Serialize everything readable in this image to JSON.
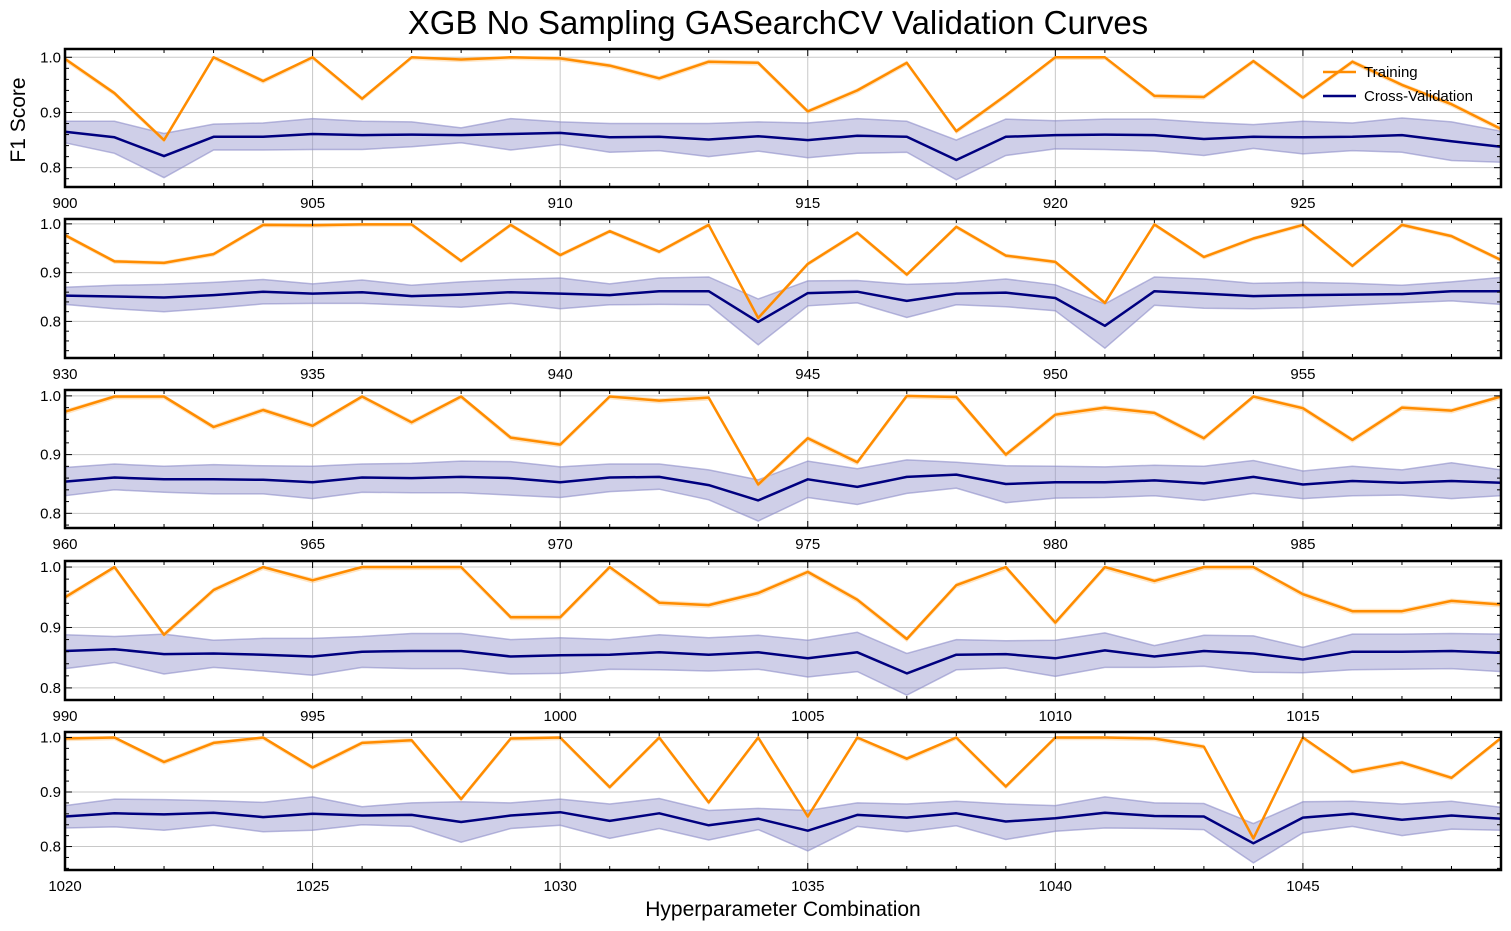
{
  "chart_data": {
    "type": "line",
    "title": "XGB No Sampling GASearchCV Validation Curves",
    "xlabel": "Hyperparameter Combination",
    "ylabel": "F1 Score",
    "legend": {
      "placement": "top-right",
      "entries": [
        "Training",
        "Cross-Validation"
      ]
    },
    "colors": {
      "Training": "#ff8c00",
      "Cross-Validation": "#00007f",
      "cv_band": "#8c8cc8"
    },
    "grid": true,
    "panels": [
      {
        "xlim": [
          900,
          929
        ],
        "ylim": [
          0.765,
          1.015
        ],
        "xticks": [
          900,
          905,
          910,
          915,
          920,
          925
        ],
        "yticks": [
          0.8,
          0.9,
          1.0
        ],
        "x": [
          900,
          901,
          902,
          903,
          904,
          905,
          906,
          907,
          908,
          909,
          910,
          911,
          912,
          913,
          914,
          915,
          916,
          917,
          918,
          919,
          920,
          921,
          922,
          923,
          924,
          925,
          926,
          927,
          928,
          929
        ],
        "series": [
          {
            "name": "Training",
            "values": [
              0.997,
              0.935,
              0.85,
              1.0,
              0.957,
              1.0,
              0.925,
              1.0,
              0.996,
              1.0,
              0.998,
              0.985,
              0.962,
              0.992,
              0.99,
              0.902,
              0.94,
              0.99,
              0.866,
              0.931,
              1.0,
              1.0,
              0.93,
              0.928,
              0.993,
              0.927,
              0.992,
              0.95,
              0.915,
              0.87
            ]
          },
          {
            "name": "Cross-Validation",
            "values": [
              0.865,
              0.855,
              0.821,
              0.856,
              0.856,
              0.861,
              0.859,
              0.86,
              0.859,
              0.861,
              0.863,
              0.855,
              0.856,
              0.851,
              0.857,
              0.85,
              0.858,
              0.856,
              0.814,
              0.856,
              0.859,
              0.86,
              0.859,
              0.852,
              0.856,
              0.855,
              0.856,
              0.859,
              0.848,
              0.838
            ],
            "lower": [
              0.845,
              0.826,
              0.782,
              0.832,
              0.832,
              0.833,
              0.833,
              0.838,
              0.845,
              0.832,
              0.842,
              0.828,
              0.831,
              0.82,
              0.83,
              0.818,
              0.826,
              0.828,
              0.778,
              0.822,
              0.834,
              0.833,
              0.83,
              0.822,
              0.835,
              0.825,
              0.831,
              0.828,
              0.813,
              0.81
            ],
            "upper": [
              0.884,
              0.884,
              0.862,
              0.879,
              0.881,
              0.889,
              0.884,
              0.883,
              0.872,
              0.889,
              0.883,
              0.88,
              0.88,
              0.88,
              0.883,
              0.881,
              0.889,
              0.884,
              0.85,
              0.888,
              0.885,
              0.888,
              0.888,
              0.882,
              0.878,
              0.884,
              0.881,
              0.89,
              0.883,
              0.866
            ]
          }
        ]
      },
      {
        "xlim": [
          930,
          959
        ],
        "ylim": [
          0.725,
          1.01
        ],
        "xticks": [
          930,
          935,
          940,
          945,
          950,
          955
        ],
        "yticks": [
          0.8,
          0.9,
          1.0
        ],
        "x": [
          930,
          931,
          932,
          933,
          934,
          935,
          936,
          937,
          938,
          939,
          940,
          941,
          942,
          943,
          944,
          945,
          946,
          947,
          948,
          949,
          950,
          951,
          952,
          953,
          954,
          955,
          956,
          957,
          958,
          959
        ],
        "series": [
          {
            "name": "Training",
            "values": [
              0.977,
              0.923,
              0.92,
              0.938,
              0.998,
              0.997,
              0.999,
              0.999,
              0.924,
              0.998,
              0.936,
              0.985,
              0.943,
              0.998,
              0.807,
              0.918,
              0.982,
              0.896,
              0.994,
              0.935,
              0.922,
              0.838,
              0.999,
              0.932,
              0.97,
              0.998,
              0.914,
              0.998,
              0.975,
              0.926
            ]
          },
          {
            "name": "Cross-Validation",
            "values": [
              0.853,
              0.851,
              0.849,
              0.854,
              0.861,
              0.857,
              0.86,
              0.852,
              0.855,
              0.86,
              0.857,
              0.854,
              0.862,
              0.862,
              0.799,
              0.858,
              0.861,
              0.842,
              0.857,
              0.859,
              0.848,
              0.791,
              0.862,
              0.857,
              0.852,
              0.854,
              0.855,
              0.856,
              0.862,
              0.862
            ],
            "lower": [
              0.835,
              0.826,
              0.82,
              0.827,
              0.836,
              0.837,
              0.837,
              0.833,
              0.829,
              0.837,
              0.826,
              0.834,
              0.835,
              0.834,
              0.752,
              0.832,
              0.838,
              0.808,
              0.834,
              0.83,
              0.822,
              0.745,
              0.833,
              0.827,
              0.826,
              0.828,
              0.833,
              0.838,
              0.842,
              0.835
            ],
            "upper": [
              0.87,
              0.874,
              0.876,
              0.88,
              0.886,
              0.877,
              0.885,
              0.874,
              0.881,
              0.886,
              0.889,
              0.877,
              0.889,
              0.891,
              0.846,
              0.883,
              0.884,
              0.876,
              0.879,
              0.887,
              0.875,
              0.836,
              0.891,
              0.887,
              0.878,
              0.88,
              0.878,
              0.874,
              0.881,
              0.89
            ]
          }
        ]
      },
      {
        "xlim": [
          960,
          989
        ],
        "ylim": [
          0.775,
          1.01
        ],
        "xticks": [
          960,
          965,
          970,
          975,
          980,
          985
        ],
        "yticks": [
          0.8,
          0.9,
          1.0
        ],
        "x": [
          960,
          961,
          962,
          963,
          964,
          965,
          966,
          967,
          968,
          969,
          970,
          971,
          972,
          973,
          974,
          975,
          976,
          977,
          978,
          979,
          980,
          981,
          982,
          983,
          984,
          985,
          986,
          987,
          988,
          989
        ],
        "series": [
          {
            "name": "Training",
            "values": [
              0.973,
              0.999,
              0.999,
              0.947,
              0.976,
              0.949,
              0.999,
              0.955,
              0.999,
              0.929,
              0.917,
              0.999,
              0.992,
              0.997,
              0.849,
              0.928,
              0.887,
              1.0,
              0.998,
              0.9,
              0.968,
              0.98,
              0.971,
              0.928,
              0.999,
              0.979,
              0.925,
              0.98,
              0.975,
              0.999
            ]
          },
          {
            "name": "Cross-Validation",
            "values": [
              0.854,
              0.861,
              0.858,
              0.858,
              0.857,
              0.853,
              0.861,
              0.86,
              0.862,
              0.86,
              0.853,
              0.861,
              0.862,
              0.848,
              0.822,
              0.858,
              0.845,
              0.862,
              0.866,
              0.85,
              0.853,
              0.853,
              0.856,
              0.851,
              0.862,
              0.849,
              0.855,
              0.852,
              0.855,
              0.852
            ],
            "lower": [
              0.83,
              0.84,
              0.836,
              0.833,
              0.833,
              0.825,
              0.836,
              0.835,
              0.835,
              0.831,
              0.827,
              0.837,
              0.841,
              0.823,
              0.787,
              0.827,
              0.815,
              0.834,
              0.843,
              0.818,
              0.826,
              0.827,
              0.83,
              0.822,
              0.834,
              0.825,
              0.83,
              0.831,
              0.825,
              0.83
            ],
            "upper": [
              0.878,
              0.884,
              0.88,
              0.883,
              0.881,
              0.88,
              0.884,
              0.885,
              0.889,
              0.888,
              0.879,
              0.884,
              0.884,
              0.874,
              0.857,
              0.889,
              0.876,
              0.891,
              0.887,
              0.881,
              0.88,
              0.879,
              0.882,
              0.88,
              0.89,
              0.872,
              0.88,
              0.874,
              0.886,
              0.874
            ]
          }
        ]
      },
      {
        "xlim": [
          990,
          1019
        ],
        "ylim": [
          0.78,
          1.01
        ],
        "xticks": [
          990,
          995,
          1000,
          1005,
          1010,
          1015
        ],
        "yticks": [
          0.8,
          0.9,
          1.0
        ],
        "x": [
          990,
          991,
          992,
          993,
          994,
          995,
          996,
          997,
          998,
          999,
          1000,
          1001,
          1002,
          1003,
          1004,
          1005,
          1006,
          1007,
          1008,
          1009,
          1010,
          1011,
          1012,
          1013,
          1014,
          1015,
          1016,
          1017,
          1018,
          1019
        ],
        "series": [
          {
            "name": "Training",
            "values": [
              0.95,
              1.0,
              0.888,
              0.962,
              1.0,
              0.978,
              1.0,
              1.0,
              1.0,
              0.917,
              0.917,
              1.0,
              0.941,
              0.937,
              0.957,
              0.992,
              0.946,
              0.881,
              0.97,
              1.0,
              0.908,
              1.0,
              0.977,
              1.0,
              1.0,
              0.955,
              0.927,
              0.927,
              0.944,
              0.938
            ]
          },
          {
            "name": "Cross-Validation",
            "values": [
              0.861,
              0.864,
              0.856,
              0.857,
              0.855,
              0.852,
              0.86,
              0.861,
              0.861,
              0.852,
              0.854,
              0.855,
              0.859,
              0.855,
              0.859,
              0.849,
              0.859,
              0.824,
              0.855,
              0.856,
              0.849,
              0.862,
              0.852,
              0.861,
              0.857,
              0.847,
              0.86,
              0.86,
              0.861,
              0.858
            ],
            "lower": [
              0.832,
              0.842,
              0.823,
              0.834,
              0.828,
              0.821,
              0.834,
              0.832,
              0.832,
              0.823,
              0.824,
              0.831,
              0.83,
              0.828,
              0.831,
              0.818,
              0.827,
              0.788,
              0.83,
              0.833,
              0.819,
              0.834,
              0.834,
              0.836,
              0.826,
              0.825,
              0.83,
              0.831,
              0.832,
              0.827
            ],
            "upper": [
              0.888,
              0.885,
              0.889,
              0.879,
              0.882,
              0.882,
              0.885,
              0.89,
              0.89,
              0.88,
              0.883,
              0.88,
              0.888,
              0.883,
              0.887,
              0.879,
              0.892,
              0.857,
              0.88,
              0.878,
              0.879,
              0.891,
              0.87,
              0.887,
              0.886,
              0.867,
              0.889,
              0.889,
              0.89,
              0.889
            ]
          }
        ]
      },
      {
        "xlim": [
          1020,
          1049
        ],
        "ylim": [
          0.757,
          1.01
        ],
        "xticks": [
          1020,
          1025,
          1030,
          1035,
          1040,
          1045
        ],
        "yticks": [
          0.8,
          0.9,
          1.0
        ],
        "x": [
          1020,
          1021,
          1022,
          1023,
          1024,
          1025,
          1026,
          1027,
          1028,
          1029,
          1030,
          1031,
          1032,
          1033,
          1034,
          1035,
          1036,
          1037,
          1038,
          1039,
          1040,
          1041,
          1042,
          1043,
          1044,
          1045,
          1046,
          1047,
          1048,
          1049
        ],
        "series": [
          {
            "name": "Training",
            "values": [
              0.998,
              1.0,
              0.955,
              0.99,
              1.0,
              0.945,
              0.99,
              0.995,
              0.887,
              0.998,
              1.0,
              0.909,
              1.0,
              0.881,
              1.0,
              0.855,
              1.0,
              0.961,
              1.0,
              0.91,
              1.0,
              1.0,
              0.998,
              0.983,
              0.815,
              1.0,
              0.937,
              0.954,
              0.926,
              0.999
            ]
          },
          {
            "name": "Cross-Validation",
            "values": [
              0.855,
              0.861,
              0.859,
              0.862,
              0.854,
              0.86,
              0.857,
              0.858,
              0.845,
              0.857,
              0.863,
              0.847,
              0.861,
              0.839,
              0.851,
              0.829,
              0.858,
              0.853,
              0.861,
              0.846,
              0.852,
              0.862,
              0.856,
              0.855,
              0.806,
              0.853,
              0.86,
              0.849,
              0.857,
              0.851
            ],
            "lower": [
              0.834,
              0.836,
              0.83,
              0.839,
              0.827,
              0.83,
              0.84,
              0.837,
              0.808,
              0.833,
              0.839,
              0.815,
              0.833,
              0.812,
              0.831,
              0.792,
              0.837,
              0.827,
              0.838,
              0.813,
              0.828,
              0.834,
              0.833,
              0.831,
              0.77,
              0.825,
              0.837,
              0.82,
              0.832,
              0.83
            ],
            "upper": [
              0.875,
              0.887,
              0.886,
              0.884,
              0.881,
              0.891,
              0.873,
              0.88,
              0.882,
              0.88,
              0.887,
              0.878,
              0.888,
              0.866,
              0.87,
              0.866,
              0.88,
              0.878,
              0.883,
              0.878,
              0.875,
              0.891,
              0.88,
              0.879,
              0.842,
              0.882,
              0.883,
              0.878,
              0.883,
              0.872
            ]
          }
        ]
      }
    ]
  }
}
